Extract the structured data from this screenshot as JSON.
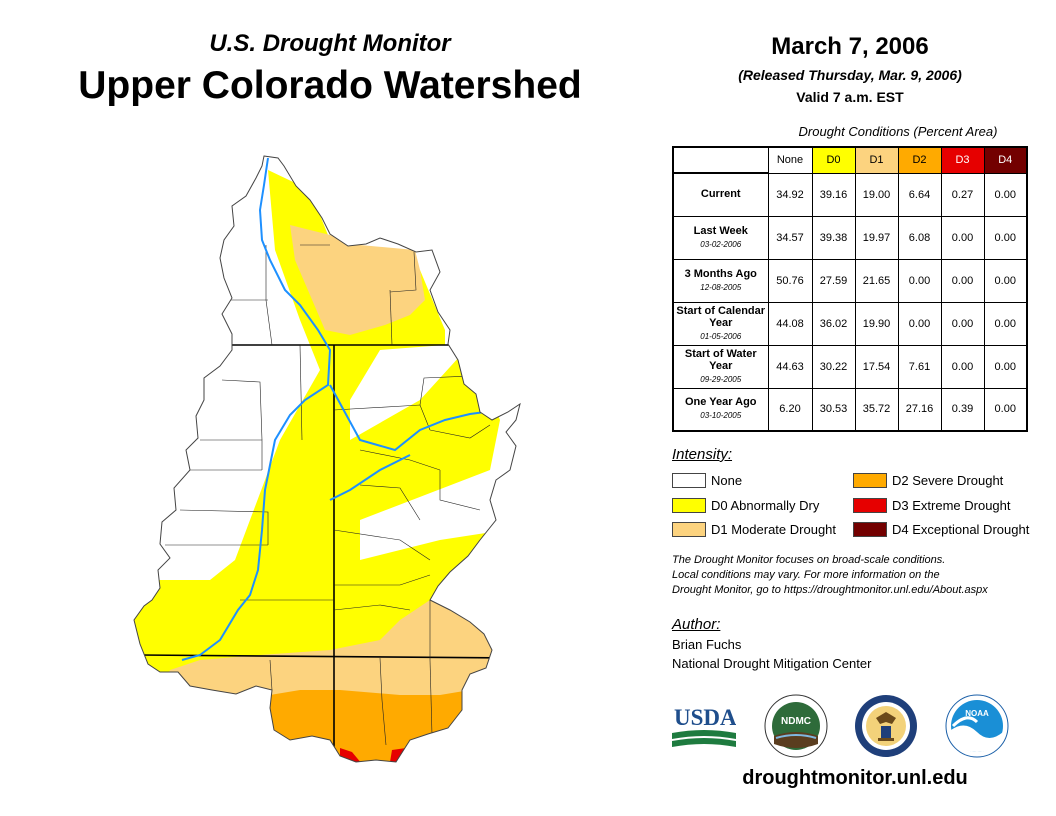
{
  "header": {
    "subtitle": "U.S. Drought Monitor",
    "title": "Upper Colorado Watershed",
    "date": "March 7, 2006",
    "released": "(Released Thursday, Mar. 9, 2006)",
    "valid": "Valid 7 a.m. EST"
  },
  "table": {
    "caption": "Drought Conditions (Percent Area)",
    "columns": [
      "None",
      "D0",
      "D1",
      "D2",
      "D3",
      "D4"
    ],
    "rows": [
      {
        "label": "Current",
        "date": "",
        "values": [
          "34.92",
          "39.16",
          "19.00",
          "6.64",
          "0.27",
          "0.00"
        ]
      },
      {
        "label": "Last Week",
        "date": "03-02-2006",
        "values": [
          "34.57",
          "39.38",
          "19.97",
          "6.08",
          "0.00",
          "0.00"
        ]
      },
      {
        "label": "3 Months Ago",
        "date": "12-08-2005",
        "values": [
          "50.76",
          "27.59",
          "21.65",
          "0.00",
          "0.00",
          "0.00"
        ]
      },
      {
        "label": "Start of Calendar Year",
        "date": "01-05-2006",
        "values": [
          "44.08",
          "36.02",
          "19.90",
          "0.00",
          "0.00",
          "0.00"
        ]
      },
      {
        "label": "Start of Water Year",
        "date": "09-29-2005",
        "values": [
          "44.63",
          "30.22",
          "17.54",
          "7.61",
          "0.00",
          "0.00"
        ]
      },
      {
        "label": "One Year Ago",
        "date": "03-10-2005",
        "values": [
          "6.20",
          "30.53",
          "35.72",
          "27.16",
          "0.39",
          "0.00"
        ]
      }
    ]
  },
  "legend": {
    "title": "Intensity:",
    "items": [
      {
        "label": "None",
        "color": "#ffffff"
      },
      {
        "label": "D0 Abnormally Dry",
        "color": "#ffff00"
      },
      {
        "label": "D1 Moderate Drought",
        "color": "#fcd37f"
      },
      {
        "label": "D2 Severe Drought",
        "color": "#ffaa00"
      },
      {
        "label": "D3 Extreme Drought",
        "color": "#e60000"
      },
      {
        "label": "D4 Exceptional Drought",
        "color": "#730000"
      }
    ]
  },
  "colors": {
    "none": "#ffffff",
    "d0": "#ffff00",
    "d1": "#fcd37f",
    "d2": "#ffaa00",
    "d3": "#e60000",
    "d4": "#730000",
    "river": "#1e90ff"
  },
  "note": {
    "line1": "The Drought Monitor focuses on broad-scale conditions.",
    "line2": "Local conditions may vary. For more information on the",
    "line3": "Drought Monitor, go to https://droughtmonitor.unl.edu/About.aspx"
  },
  "author": {
    "heading": "Author:",
    "name": "Brian Fuchs",
    "org": "National Drought Mitigation Center"
  },
  "logos": {
    "usda": "USDA",
    "ndmc": "NDMC",
    "noaa": "NOAA"
  },
  "website": "droughtmonitor.unl.edu"
}
